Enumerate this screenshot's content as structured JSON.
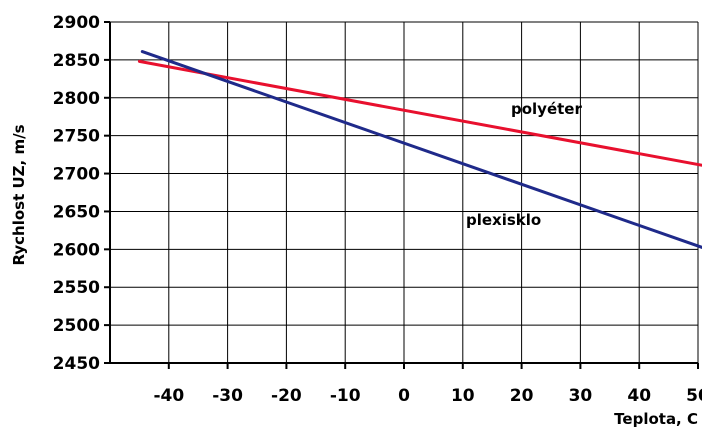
{
  "chart_data": {
    "type": "line",
    "title": "",
    "xlabel": "Teplota, C",
    "ylabel": "Rychlost UZ, m/s",
    "xlim": [
      -50,
      50
    ],
    "ylim": [
      2450,
      2900
    ],
    "x_ticks": [
      -40,
      -30,
      -20,
      -10,
      0,
      10,
      20,
      30,
      40,
      50
    ],
    "x_tick_labels": [
      "-40",
      "-30",
      "-20",
      "-10",
      "0",
      "10",
      "20",
      "30",
      "40",
      "50"
    ],
    "y_ticks": [
      2450,
      2500,
      2550,
      2600,
      2650,
      2700,
      2750,
      2800,
      2850,
      2900
    ],
    "y_tick_labels": [
      "2450",
      "2500",
      "2550",
      "2600",
      "2650",
      "2700",
      "2750",
      "2800",
      "2850",
      "2900"
    ],
    "grid": true,
    "legend": "none",
    "series": [
      {
        "name": "polyéter",
        "color": "#e8102e",
        "x": [
          -45,
          52
        ],
        "y": [
          2848,
          2709
        ]
      },
      {
        "name": "plexisklo",
        "color": "#1f2a8a",
        "x": [
          -44.5,
          52
        ],
        "y": [
          2861,
          2599
        ]
      }
    ]
  }
}
